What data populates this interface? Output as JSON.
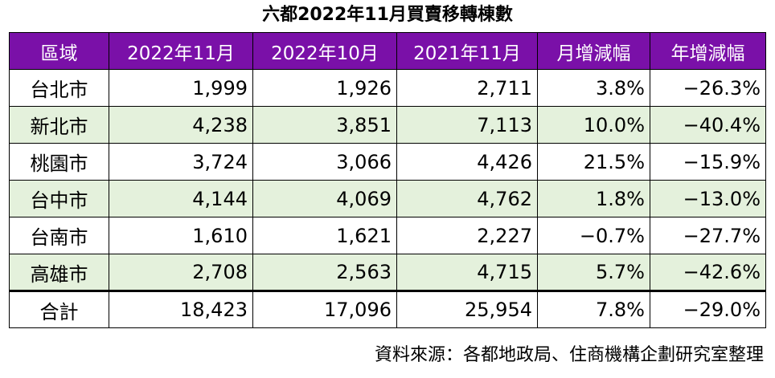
{
  "title": "六都2022年11月買賣移轉棟數",
  "headers": [
    "區域",
    "2022年11月",
    "2022年10月",
    "2021年11月",
    "月增減幅",
    "年增減幅"
  ],
  "rows": [
    {
      "region": "台北市",
      "nov2022": "1,999",
      "oct2022": "1,926",
      "nov2021": "2,711",
      "mom": "3.8%",
      "yoy": "−26.3%"
    },
    {
      "region": "新北市",
      "nov2022": "4,238",
      "oct2022": "3,851",
      "nov2021": "7,113",
      "mom": "10.0%",
      "yoy": "−40.4%"
    },
    {
      "region": "桃園市",
      "nov2022": "3,724",
      "oct2022": "3,066",
      "nov2021": "4,426",
      "mom": "21.5%",
      "yoy": "−15.9%"
    },
    {
      "region": "台中市",
      "nov2022": "4,144",
      "oct2022": "4,069",
      "nov2021": "4,762",
      "mom": "1.8%",
      "yoy": "−13.0%"
    },
    {
      "region": "台南市",
      "nov2022": "1,610",
      "oct2022": "1,621",
      "nov2021": "2,227",
      "mom": "−0.7%",
      "yoy": "−27.7%"
    },
    {
      "region": "高雄市",
      "nov2022": "2,708",
      "oct2022": "2,563",
      "nov2021": "4,715",
      "mom": "5.7%",
      "yoy": "−42.6%"
    },
    {
      "region": "合計",
      "nov2022": "18,423",
      "oct2022": "17,096",
      "nov2021": "25,954",
      "mom": "7.8%",
      "yoy": "−29.0%"
    }
  ],
  "source": "資料來源：各都地政局、住商機構企劃研究室整理",
  "colors": {
    "header_bg": "#7a10a8",
    "header_text": "#ffffff",
    "shaded_row": "#e4f1dc",
    "border": "#000000"
  }
}
